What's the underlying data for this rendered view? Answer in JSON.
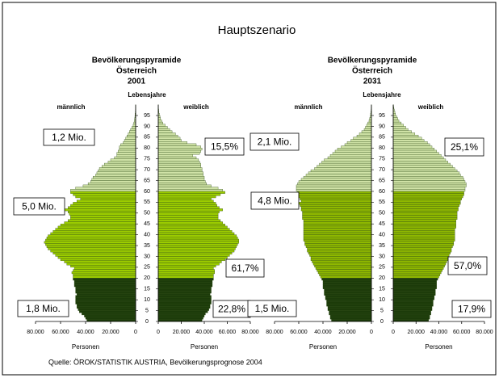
{
  "title": "Hauptszenario",
  "source": "Quelle: ÖROK/STATISTIK AUSTRIA, Bevölkerungsprognose 2004",
  "chart_data": [
    {
      "type": "pyramid",
      "title": "Bevölkerungspyramide",
      "subtitle": "Österreich",
      "period": "2001",
      "ylabel": "Lebensjahre",
      "xlabel": "Personen",
      "ylim": [
        0,
        100
      ],
      "yticks": [
        0,
        5,
        10,
        15,
        20,
        25,
        30,
        35,
        40,
        45,
        50,
        55,
        60,
        65,
        70,
        75,
        80,
        85,
        90,
        95
      ],
      "xlim": [
        0,
        80000
      ],
      "xticks": [
        0,
        {
          "value": 20000,
          "label": "20.000"
        },
        {
          "value": 40000,
          "label": "40.000"
        },
        {
          "value": 60000,
          "label": "60.000"
        },
        {
          "value": 80000,
          "label": "80.000"
        }
      ],
      "bands": [
        {
          "from": 0,
          "color": "#1c3b0a"
        },
        {
          "from": 20,
          "color": "#9ccc00"
        },
        {
          "from": 60,
          "color": "#cfe2a6"
        }
      ],
      "ages": [
        0,
        1,
        2,
        3,
        4,
        5,
        6,
        7,
        8,
        9,
        10,
        11,
        12,
        13,
        14,
        15,
        16,
        17,
        18,
        19,
        20,
        21,
        22,
        23,
        24,
        25,
        26,
        27,
        28,
        29,
        30,
        31,
        32,
        33,
        34,
        35,
        36,
        37,
        38,
        39,
        40,
        41,
        42,
        43,
        44,
        45,
        46,
        47,
        48,
        49,
        50,
        51,
        52,
        53,
        54,
        55,
        56,
        57,
        58,
        59,
        60,
        61,
        62,
        63,
        64,
        65,
        66,
        67,
        68,
        69,
        70,
        71,
        72,
        73,
        74,
        75,
        76,
        77,
        78,
        79,
        80,
        81,
        82,
        83,
        84,
        85,
        86,
        87,
        88,
        89,
        90,
        91,
        92,
        93,
        94,
        95,
        96,
        97,
        98,
        99
      ],
      "series": [
        {
          "name": "männlich",
          "values": [
            39000,
            40000,
            41000,
            43000,
            45000,
            46000,
            47000,
            47000,
            48000,
            48000,
            48000,
            48000,
            47000,
            48000,
            48000,
            48000,
            49000,
            49000,
            49000,
            50000,
            50000,
            50000,
            51000,
            50000,
            49000,
            52000,
            55000,
            57000,
            60000,
            62000,
            64000,
            66000,
            68000,
            70000,
            71000,
            72000,
            73000,
            72000,
            71000,
            70000,
            68000,
            66000,
            64000,
            62000,
            60000,
            57000,
            54000,
            52000,
            52000,
            53000,
            54000,
            57000,
            54000,
            52000,
            50000,
            47000,
            44000,
            48000,
            50000,
            52000,
            52000,
            48000,
            42000,
            38000,
            36000,
            35000,
            34000,
            32000,
            31000,
            30000,
            29000,
            27000,
            25000,
            22000,
            20000,
            17000,
            15000,
            15000,
            14000,
            13000,
            13000,
            12000,
            10000,
            9000,
            8000,
            7000,
            6000,
            5000,
            4000,
            3000,
            2000,
            1500,
            1000,
            800,
            600,
            500,
            300,
            200,
            100,
            50
          ]
        },
        {
          "name": "weiblich",
          "values": [
            38000,
            39000,
            40000,
            41000,
            43000,
            44000,
            45000,
            45000,
            46000,
            46000,
            46000,
            46000,
            45000,
            46000,
            46000,
            46000,
            47000,
            47000,
            47000,
            48000,
            48000,
            48000,
            49000,
            49000,
            48000,
            50000,
            53000,
            55000,
            58000,
            60000,
            62000,
            64000,
            66000,
            67000,
            68000,
            69000,
            70000,
            70000,
            69000,
            68000,
            66000,
            64000,
            62000,
            60000,
            58000,
            56000,
            54000,
            52000,
            52000,
            52000,
            53000,
            56000,
            53000,
            51000,
            50000,
            48000,
            46000,
            50000,
            54000,
            58000,
            56000,
            52000,
            46000,
            42000,
            41000,
            40000,
            40000,
            39000,
            39000,
            38000,
            38000,
            37000,
            37000,
            36000,
            35000,
            33000,
            30000,
            36000,
            37000,
            38000,
            37000,
            33000,
            25000,
            20000,
            19000,
            17000,
            15000,
            12000,
            10000,
            8000,
            6000,
            4000,
            3000,
            2000,
            1500,
            1000,
            600,
            400,
            200,
            100
          ]
        }
      ],
      "annotations": [
        "1,2 Mio.",
        "5,0 Mio.",
        "1,8 Mio.",
        "15,5%",
        "61,7%",
        "22,8%"
      ]
    },
    {
      "type": "pyramid",
      "title": "Bevölkerungspyramide",
      "subtitle": "Österreich",
      "period": "2031",
      "ylabel": "Lebensjahre",
      "xlabel": "Personen",
      "ylim": [
        0,
        100
      ],
      "yticks": [
        0,
        5,
        10,
        15,
        20,
        25,
        30,
        35,
        40,
        45,
        50,
        55,
        60,
        65,
        70,
        75,
        80,
        85,
        90,
        95
      ],
      "xlim": [
        0,
        80000
      ],
      "xticks": [
        0,
        {
          "value": 20000,
          "label": "20.000"
        },
        {
          "value": 40000,
          "label": "40.000"
        },
        {
          "value": 60000,
          "label": "60.000"
        },
        {
          "value": 80000,
          "label": "80.000"
        }
      ],
      "bands": [
        {
          "from": 0,
          "color": "#1c3b0a"
        },
        {
          "from": 20,
          "color": "#8fb800"
        },
        {
          "from": 60,
          "color": "#cfe2a6"
        }
      ],
      "ages": [
        0,
        1,
        2,
        3,
        4,
        5,
        6,
        7,
        8,
        9,
        10,
        11,
        12,
        13,
        14,
        15,
        16,
        17,
        18,
        19,
        20,
        21,
        22,
        23,
        24,
        25,
        26,
        27,
        28,
        29,
        30,
        31,
        32,
        33,
        34,
        35,
        36,
        37,
        38,
        39,
        40,
        41,
        42,
        43,
        44,
        45,
        46,
        47,
        48,
        49,
        50,
        51,
        52,
        53,
        54,
        55,
        56,
        57,
        58,
        59,
        60,
        61,
        62,
        63,
        64,
        65,
        66,
        67,
        68,
        69,
        70,
        71,
        72,
        73,
        74,
        75,
        76,
        77,
        78,
        79,
        80,
        81,
        82,
        83,
        84,
        85,
        86,
        87,
        88,
        89,
        90,
        91,
        92,
        93,
        94,
        95,
        96,
        97,
        98,
        99
      ],
      "series": [
        {
          "name": "männlich",
          "values": [
            33000,
            34000,
            34000,
            35000,
            35000,
            36000,
            36000,
            37000,
            37000,
            37000,
            38000,
            38000,
            39000,
            39000,
            39000,
            40000,
            40000,
            40000,
            40000,
            41000,
            42000,
            43000,
            44000,
            45000,
            46000,
            47000,
            48000,
            49000,
            50000,
            50000,
            51000,
            52000,
            53000,
            53000,
            54000,
            55000,
            55000,
            56000,
            56000,
            56000,
            56000,
            56000,
            56000,
            56000,
            56000,
            56000,
            56000,
            57000,
            57000,
            57000,
            57000,
            58000,
            58000,
            59000,
            60000,
            58000,
            59000,
            60000,
            61000,
            61000,
            62000,
            62000,
            62000,
            61000,
            60000,
            58000,
            56000,
            54000,
            52000,
            50000,
            47000,
            45000,
            43000,
            41000,
            39000,
            36000,
            34000,
            32000,
            30000,
            28000,
            25000,
            22000,
            20000,
            17000,
            15000,
            12000,
            10000,
            8000,
            6000,
            5000,
            4000,
            3000,
            2000,
            1500,
            1000,
            700,
            500,
            300,
            200,
            100
          ]
        },
        {
          "name": "weiblich",
          "values": [
            31000,
            32000,
            32000,
            33000,
            33000,
            34000,
            34000,
            35000,
            35000,
            35000,
            36000,
            36000,
            37000,
            37000,
            37000,
            38000,
            38000,
            38000,
            38000,
            39000,
            40000,
            41000,
            42000,
            43000,
            44000,
            45000,
            46000,
            47000,
            48000,
            48000,
            49000,
            50000,
            51000,
            51000,
            52000,
            53000,
            53000,
            54000,
            54000,
            54000,
            54000,
            54000,
            54000,
            55000,
            55000,
            55000,
            55000,
            56000,
            56000,
            56000,
            56000,
            57000,
            57000,
            58000,
            59000,
            59000,
            60000,
            61000,
            62000,
            62000,
            63000,
            63000,
            64000,
            64000,
            63000,
            62000,
            61000,
            59000,
            58000,
            56000,
            54000,
            52000,
            50000,
            48000,
            46000,
            44000,
            42000,
            40000,
            38000,
            36000,
            34000,
            32000,
            30000,
            27000,
            25000,
            22000,
            19000,
            16000,
            13000,
            11000,
            9000,
            7000,
            5000,
            4000,
            3000,
            2000,
            1500,
            1000,
            600,
            300
          ]
        }
      ],
      "annotations": [
        "2,1 Mio.",
        "4,8 Mio.",
        "1,5 Mio.",
        "25,1%",
        "57,0%",
        "17,9%"
      ]
    }
  ]
}
